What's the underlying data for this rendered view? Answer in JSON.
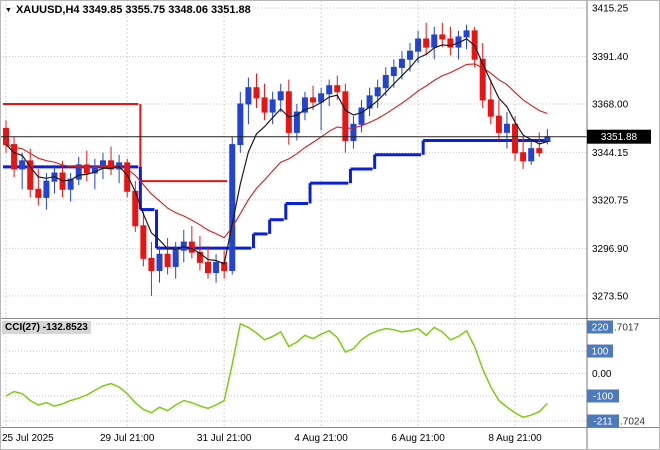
{
  "header": {
    "full": "XAUUSD,H4 3349.85 3355.75 3348.06 3351.88",
    "symbol": "XAUUSD",
    "timeframe": "H4",
    "open": "3349.85",
    "high": "3355.75",
    "low": "3348.06",
    "close": "3351.88"
  },
  "icons": {
    "dropdown": "▼"
  },
  "colors": {
    "bull": "#2244d0",
    "bear": "#e81414",
    "ma_fast": "#1a1a1a",
    "ma_slow": "#d02020",
    "step_support": "#0b1fd8",
    "step_resistance": "#e81414",
    "cci_line": "#7ccd12",
    "badge": "#4d79bd",
    "badge_text": "#ffffff",
    "price_badge_bg": "#000000",
    "price_badge_fg": "#ffffff",
    "grid_v": "#d4d4d4",
    "grid_h": "#c6c6c6",
    "separator": "#8a8a8a",
    "axis_text": "#000000",
    "current_line": "#222222"
  },
  "chart_data": {
    "type": "candlestick",
    "symbol": "XAUUSD",
    "timeframe": "H4",
    "price_axis": {
      "labels": [
        "3415.25",
        "3391.40",
        "3368.00",
        "3344.15",
        "3320.75",
        "3296.90",
        "3273.50"
      ],
      "max": 3419.2,
      "min": 3262.6,
      "current": 3351.88,
      "current_label": "3351.88"
    },
    "time_axis": [
      {
        "text": "25 Jul 2025",
        "bar": 0
      },
      {
        "text": "29 Jul 21:00",
        "bar": 15
      },
      {
        "text": "31 Jul 21:00",
        "bar": 27
      },
      {
        "text": "4 Aug 21:00",
        "bar": 39
      },
      {
        "text": "6 Aug 21:00",
        "bar": 51
      },
      {
        "text": "8 Aug 21:00",
        "bar": 63
      }
    ],
    "candles": [
      [
        3356,
        3360,
        3344,
        3348
      ],
      [
        3348,
        3352,
        3332,
        3336
      ],
      [
        3336,
        3344,
        3326,
        3340
      ],
      [
        3340,
        3346,
        3322,
        3326
      ],
      [
        3326,
        3336,
        3318,
        3322
      ],
      [
        3322,
        3334,
        3316,
        3330
      ],
      [
        3330,
        3338,
        3324,
        3334
      ],
      [
        3334,
        3340,
        3322,
        3326
      ],
      [
        3326,
        3334,
        3320,
        3331
      ],
      [
        3331,
        3342,
        3328,
        3338
      ],
      [
        3338,
        3345,
        3330,
        3334
      ],
      [
        3334,
        3341,
        3326,
        3337
      ],
      [
        3337,
        3344,
        3331,
        3340
      ],
      [
        3340,
        3347,
        3333,
        3336
      ],
      [
        3336,
        3343,
        3329,
        3339
      ],
      [
        3339,
        3341,
        3322,
        3325
      ],
      [
        3325,
        3330,
        3305,
        3308
      ],
      [
        3308,
        3315,
        3288,
        3292
      ],
      [
        3292,
        3300,
        3273.5,
        3286
      ],
      [
        3286,
        3298,
        3280,
        3294
      ],
      [
        3294,
        3302,
        3284,
        3288
      ],
      [
        3288,
        3300,
        3282,
        3296
      ],
      [
        3296,
        3306,
        3290,
        3300
      ],
      [
        3300,
        3308,
        3292,
        3295
      ],
      [
        3295,
        3303,
        3286,
        3290
      ],
      [
        3290,
        3298,
        3282,
        3285
      ],
      [
        3285,
        3294,
        3280,
        3290
      ],
      [
        3290,
        3296,
        3282,
        3286
      ],
      [
        3286,
        3352,
        3284,
        3348
      ],
      [
        3348,
        3374,
        3344,
        3368
      ],
      [
        3368,
        3381,
        3358,
        3376
      ],
      [
        3376,
        3383,
        3366,
        3371
      ],
      [
        3371,
        3378,
        3360,
        3364
      ],
      [
        3364,
        3374,
        3358,
        3370
      ],
      [
        3370,
        3378,
        3364,
        3374
      ],
      [
        3374,
        3380,
        3348,
        3354
      ],
      [
        3354,
        3368,
        3350,
        3364
      ],
      [
        3364,
        3374,
        3360,
        3371
      ],
      [
        3371,
        3377,
        3365,
        3369
      ],
      [
        3369,
        3376,
        3355,
        3373
      ],
      [
        3373,
        3380,
        3367,
        3377
      ],
      [
        3377,
        3382,
        3370,
        3374
      ],
      [
        3374,
        3378,
        3344,
        3350
      ],
      [
        3350,
        3362,
        3346,
        3358
      ],
      [
        3358,
        3370,
        3354,
        3366
      ],
      [
        3366,
        3376,
        3362,
        3372
      ],
      [
        3372,
        3380,
        3366,
        3376
      ],
      [
        3376,
        3386,
        3372,
        3382
      ],
      [
        3382,
        3390,
        3376,
        3386
      ],
      [
        3386,
        3394,
        3380,
        3390
      ],
      [
        3390,
        3398,
        3384,
        3394
      ],
      [
        3394,
        3404,
        3388,
        3400
      ],
      [
        3400,
        3408,
        3392,
        3396
      ],
      [
        3396,
        3406,
        3390,
        3402
      ],
      [
        3402,
        3408,
        3396,
        3400
      ],
      [
        3400,
        3406,
        3392,
        3396
      ],
      [
        3396,
        3404,
        3390,
        3401
      ],
      [
        3401,
        3407,
        3395,
        3404
      ],
      [
        3404,
        3406,
        3386,
        3390
      ],
      [
        3390,
        3398,
        3366,
        3370
      ],
      [
        3370,
        3380,
        3358,
        3362
      ],
      [
        3362,
        3370,
        3350,
        3354
      ],
      [
        3354,
        3364,
        3346,
        3358
      ],
      [
        3358,
        3362,
        3340,
        3344
      ],
      [
        3344,
        3352,
        3336,
        3340
      ],
      [
        3340,
        3350,
        3338,
        3346
      ],
      [
        3346,
        3354,
        3342,
        3344
      ],
      [
        3349.85,
        3355.75,
        3348.06,
        3351.88
      ]
    ],
    "overlays": {
      "ma_fast_period": 5,
      "ma_slow_period": 17,
      "support_steps": [
        {
          "from": 0,
          "to": 16,
          "price": 3337
        },
        {
          "from": 17,
          "to": 18,
          "price": 3316
        },
        {
          "from": 19,
          "to": 30,
          "price": 3297
        },
        {
          "from": 31,
          "to": 32,
          "price": 3304
        },
        {
          "from": 33,
          "to": 34,
          "price": 3311
        },
        {
          "from": 35,
          "to": 37,
          "price": 3319
        },
        {
          "from": 38,
          "to": 42,
          "price": 3329
        },
        {
          "from": 43,
          "to": 45,
          "price": 3336
        },
        {
          "from": 46,
          "to": 51,
          "price": 3343
        },
        {
          "from": 52,
          "to": 67,
          "price": 3350
        }
      ],
      "resistance_steps": [
        {
          "from": 0,
          "to": 16,
          "price": 3368
        },
        {
          "from": 17,
          "to": 27,
          "price": 3330
        }
      ]
    },
    "indicator": {
      "name": "CCI",
      "period": 27,
      "current": "-132.8523",
      "label": "CCI(27) -132.8523",
      "scale": {
        "max": 238,
        "min": -238
      },
      "axis": [
        {
          "text": "220",
          "suffix": ".7017",
          "badge": true,
          "value": 220.7017
        },
        {
          "text": "100",
          "suffix": "",
          "badge": true,
          "value": 100
        },
        {
          "text": "0.00",
          "suffix": "",
          "badge": false,
          "value": 0
        },
        {
          "text": "-100",
          "suffix": "",
          "badge": true,
          "value": -100
        },
        {
          "text": "-211",
          "suffix": ".7024",
          "badge": true,
          "value": -211.7024
        }
      ],
      "values": [
        -100,
        -80,
        -90,
        -120,
        -140,
        -130,
        -145,
        -135,
        -120,
        -110,
        -95,
        -75,
        -55,
        -45,
        -60,
        -90,
        -130,
        -160,
        -175,
        -150,
        -165,
        -140,
        -120,
        -130,
        -145,
        -155,
        -140,
        -120,
        40,
        221,
        205,
        180,
        150,
        165,
        185,
        120,
        140,
        170,
        155,
        175,
        190,
        160,
        95,
        110,
        150,
        175,
        190,
        200,
        195,
        185,
        190,
        200,
        170,
        205,
        185,
        150,
        165,
        190,
        120,
        20,
        -60,
        -120,
        -150,
        -175,
        -195,
        -185,
        -170,
        -132.85
      ]
    }
  }
}
